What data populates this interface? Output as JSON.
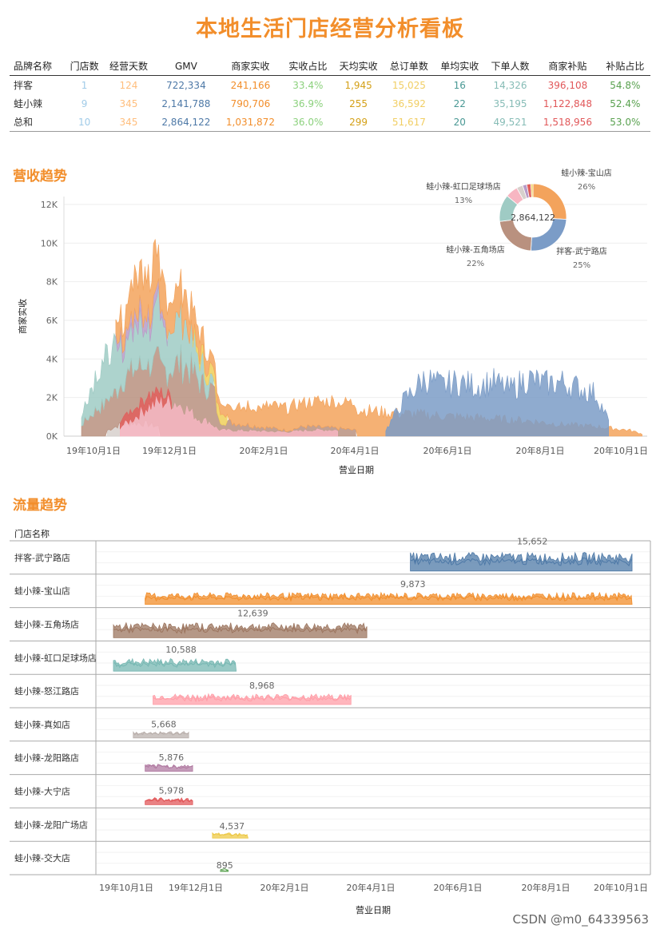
{
  "title": "本地生活门店经营分析看板",
  "kpi": {
    "headers": [
      "品牌名称",
      "门店数",
      "经营天数",
      "GMV",
      "商家实收",
      "实收占比",
      "天均实收",
      "总订单数",
      "单均实收",
      "下单人数",
      "商家补贴",
      "补贴占比"
    ],
    "col_colors": [
      "#333333",
      "#a0cbe8",
      "#ffbe7d",
      "#4e79a7",
      "#f28e2b",
      "#8cd17d",
      "#d4a017",
      "#f1ce63",
      "#499894",
      "#86bcb6",
      "#e15759",
      "#59a14f"
    ],
    "rows": [
      [
        "拌客",
        "1",
        "124",
        "722,334",
        "241,166",
        "33.4%",
        "1,945",
        "15,025",
        "16",
        "14,326",
        "396,108",
        "54.8%"
      ],
      [
        "蛙小辣",
        "9",
        "345",
        "2,141,788",
        "790,706",
        "36.9%",
        "255",
        "36,592",
        "22",
        "35,195",
        "1,122,848",
        "52.4%"
      ],
      [
        "总和",
        "10",
        "345",
        "2,864,122",
        "1,031,872",
        "36.0%",
        "299",
        "51,617",
        "20",
        "49,521",
        "1,518,956",
        "53.0%"
      ]
    ]
  },
  "revenue_section_title": "营收趋势",
  "traffic_section_title": "流量趋势",
  "watermark": "CSDN @m0_64339563",
  "chart_data": [
    {
      "type": "area",
      "title": "营收趋势",
      "xlabel": "营业日期",
      "ylabel": "商家实收",
      "x_ticks": [
        "19年10月1日",
        "19年12月1日",
        "20年2月1日",
        "20年4月1日",
        "20年6月1日",
        "20年8月1日",
        "20年10月1日"
      ],
      "y_ticks": [
        "0K",
        "2K",
        "4K",
        "6K",
        "8K",
        "10K",
        "12K"
      ],
      "ylim": [
        0,
        12000
      ],
      "stacked": true,
      "series": [
        {
          "name": "蛙小辣-真如店",
          "color": "#d7d0cc",
          "points": [
            [
              30,
              300
            ],
            [
              45,
              600
            ],
            [
              60,
              700
            ],
            [
              75,
              650
            ],
            [
              90,
              500
            ]
          ]
        },
        {
          "name": "蛙小辣-五角场店",
          "color": "#b9917f",
          "points": [
            [
              0,
              600
            ],
            [
              20,
              1500
            ],
            [
              40,
              1800
            ],
            [
              55,
              2600
            ],
            [
              70,
              3000
            ],
            [
              85,
              3200
            ],
            [
              100,
              3500
            ],
            [
              115,
              3800
            ],
            [
              125,
              3600
            ],
            [
              140,
              2700
            ],
            [
              155,
              2400
            ],
            [
              160,
              800
            ],
            [
              240,
              300
            ],
            [
              260,
              500
            ],
            [
              280,
              450
            ],
            [
              300,
              400
            ],
            [
              320,
              300
            ]
          ]
        },
        {
          "name": "蛙小辣-怒江路店",
          "color": "#f7b6c2",
          "points": [
            [
              45,
              500
            ],
            [
              60,
              900
            ],
            [
              75,
              1500
            ],
            [
              90,
              1800
            ],
            [
              105,
              1800
            ],
            [
              120,
              1500
            ],
            [
              135,
              900
            ],
            [
              150,
              700
            ],
            [
              160,
              300
            ],
            [
              240,
              200
            ],
            [
              270,
              300
            ],
            [
              300,
              300
            ]
          ]
        },
        {
          "name": "蛙小辣-虹口足球场店",
          "color": "#9fcbc4",
          "points": [
            [
              0,
              400
            ],
            [
              10,
              1400
            ],
            [
              20,
              2000
            ],
            [
              30,
              2300
            ],
            [
              40,
              2200
            ],
            [
              55,
              1900
            ],
            [
              70,
              2300
            ],
            [
              85,
              2500
            ],
            [
              100,
              2600
            ],
            [
              115,
              2400
            ],
            [
              130,
              1600
            ],
            [
              145,
              800
            ],
            [
              155,
              300
            ]
          ]
        },
        {
          "name": "蛙小辣-龙阳路店",
          "color": "#b89bc7",
          "points": [
            [
              40,
              300
            ],
            [
              55,
              600
            ],
            [
              70,
              700
            ],
            [
              85,
              500
            ],
            [
              100,
              300
            ]
          ]
        },
        {
          "name": "蛙小辣-大宁店",
          "color": "#e05f5c",
          "points": [
            [
              45,
              300
            ],
            [
              60,
              500
            ],
            [
              75,
              600
            ],
            [
              90,
              450
            ],
            [
              105,
              300
            ]
          ]
        },
        {
          "name": "蛙小辣-龙阳广场店",
          "color": "#efcf5b",
          "points": [
            [
              130,
              300
            ],
            [
              145,
              500
            ],
            [
              160,
              700
            ],
            [
              170,
              300
            ]
          ]
        },
        {
          "name": "蛙小辣-宝山店",
          "color": "#f3a35c",
          "points": [
            [
              40,
              800
            ],
            [
              55,
              1400
            ],
            [
              70,
              2200
            ],
            [
              85,
              2200
            ],
            [
              100,
              1500
            ],
            [
              120,
              1400
            ],
            [
              140,
              1100
            ],
            [
              160,
              500
            ],
            [
              175,
              800
            ],
            [
              200,
              1000
            ],
            [
              240,
              1200
            ],
            [
              280,
              1300
            ],
            [
              320,
              1400
            ],
            [
              360,
              1200
            ],
            [
              400,
              1100
            ],
            [
              440,
              1000
            ],
            [
              480,
              900
            ],
            [
              520,
              800
            ],
            [
              560,
              600
            ],
            [
              600,
              500
            ],
            [
              640,
              300
            ],
            [
              655,
              100
            ]
          ]
        },
        {
          "name": "拌客-武宁路店",
          "color": "#7b9cc7",
          "points": [
            [
              355,
              300
            ],
            [
              375,
              1800
            ],
            [
              400,
              3000
            ],
            [
              420,
              2600
            ],
            [
              440,
              2800
            ],
            [
              460,
              2600
            ],
            [
              480,
              2800
            ],
            [
              500,
              2400
            ],
            [
              520,
              3000
            ],
            [
              540,
              2700
            ],
            [
              560,
              2800
            ],
            [
              580,
              2500
            ],
            [
              600,
              2200
            ],
            [
              615,
              800
            ]
          ]
        }
      ],
      "pie": {
        "center_label": "2,864,122",
        "slices": [
          {
            "label": "蛙小辣-宝山店",
            "pct": 26,
            "color": "#f3a35c"
          },
          {
            "label": "拌客-武宁路店",
            "pct": 25,
            "color": "#7b9cc7"
          },
          {
            "label": "蛙小辣-五角场店",
            "pct": 22,
            "color": "#b9917f"
          },
          {
            "label": "蛙小辣-虹口足球场店",
            "pct": 13,
            "color": "#9fcbc4"
          },
          {
            "label": "蛙小辣-怒江路店",
            "pct": 6,
            "color": "#f7b6c2"
          },
          {
            "label": "蛙小辣-真如店",
            "pct": 3,
            "color": "#d7d0cc"
          },
          {
            "label": "蛙小辣-龙阳路店",
            "pct": 2,
            "color": "#b89bc7"
          },
          {
            "label": "蛙小辣-大宁店",
            "pct": 2,
            "color": "#e05f5c"
          },
          {
            "label": "蛙小辣-龙阳广场店",
            "pct": 1,
            "color": "#efcf5b"
          }
        ],
        "shown_labels": [
          {
            "text": "蛙小辣-宝山店",
            "pct": "26%"
          },
          {
            "text": "拌客-武宁路店",
            "pct": "25%"
          },
          {
            "text": "蛙小辣-五角场店",
            "pct": "22%"
          },
          {
            "text": "蛙小辣-虹口足球场店",
            "pct": "13%"
          }
        ]
      }
    },
    {
      "type": "area",
      "title": "流量趋势",
      "xlabel": "营业日期",
      "row_header": "门店名称",
      "x_ticks": [
        "19年10月1日",
        "19年12月1日",
        "20年2月1日",
        "20年4月1日",
        "20年6月1日",
        "20年8月1日",
        "20年10月1日"
      ],
      "rows": [
        {
          "name": "拌客-武宁路店",
          "color": "#4e79a7",
          "start": 375,
          "end": 655,
          "peak": 15652,
          "peak_label": "15,652"
        },
        {
          "name": "蛙小辣-宝山店",
          "color": "#f28e2b",
          "start": 40,
          "end": 655,
          "peak": 9873,
          "peak_label": "9,873"
        },
        {
          "name": "蛙小辣-五角场店",
          "color": "#9c755f",
          "start": 0,
          "end": 320,
          "peak": 12639,
          "peak_label": "12,639"
        },
        {
          "name": "蛙小辣-虹口足球场店",
          "color": "#76b7b2",
          "start": 0,
          "end": 155,
          "peak": 10588,
          "peak_label": "10,588"
        },
        {
          "name": "蛙小辣-怒江路店",
          "color": "#ff9da7",
          "start": 50,
          "end": 300,
          "peak": 8968,
          "peak_label": "8,968"
        },
        {
          "name": "蛙小辣-真如店",
          "color": "#bab0ac",
          "start": 25,
          "end": 95,
          "peak": 5668,
          "peak_label": "5,668"
        },
        {
          "name": "蛙小辣-龙阳路店",
          "color": "#b07aa1",
          "start": 40,
          "end": 100,
          "peak": 5876,
          "peak_label": "5,876"
        },
        {
          "name": "蛙小辣-大宁店",
          "color": "#e15759",
          "start": 40,
          "end": 100,
          "peak": 5978,
          "peak_label": "5,978"
        },
        {
          "name": "蛙小辣-龙阳广场店",
          "color": "#edc948",
          "start": 125,
          "end": 170,
          "peak": 4537,
          "peak_label": "4,537"
        },
        {
          "name": "蛙小辣-交大店",
          "color": "#59a14f",
          "start": 135,
          "end": 145,
          "peak": 895,
          "peak_label": "895"
        }
      ]
    }
  ]
}
